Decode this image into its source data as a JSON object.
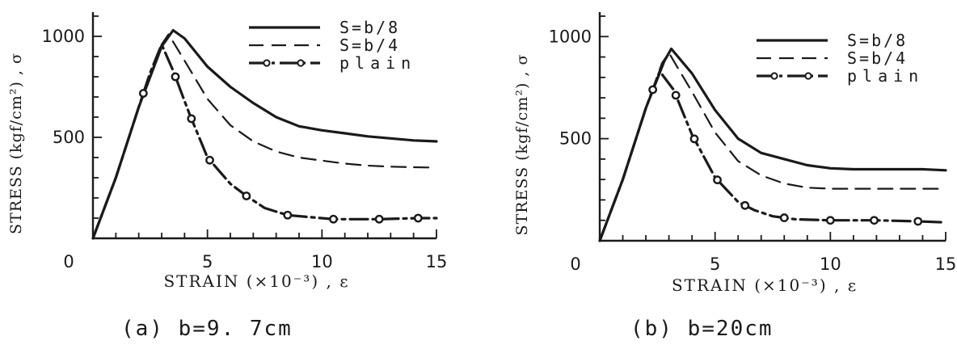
{
  "chart_data": [
    {
      "type": "line",
      "caption": "(a) b=9. 7cm",
      "xlabel": "STRAIN (×10⁻³) , ε",
      "ylabel": "STRESS (kgf/cm²) , σ",
      "xlim": [
        0,
        15
      ],
      "ylim": [
        0,
        1100
      ],
      "x_ticks": [
        "0",
        "5",
        "10",
        "15"
      ],
      "y_ticks": [
        "500",
        "1000"
      ],
      "legend_position": "top-right",
      "grid": false,
      "series": [
        {
          "name": "S=b/8",
          "style": "solid",
          "x": [
            0,
            1,
            2,
            3,
            3.5,
            4,
            5,
            6,
            7,
            8,
            9,
            10,
            11,
            12,
            13,
            14,
            15
          ],
          "y": [
            0,
            300,
            650,
            950,
            1030,
            990,
            850,
            750,
            670,
            600,
            555,
            535,
            520,
            505,
            495,
            485,
            480
          ]
        },
        {
          "name": "S=b/4",
          "style": "dashed",
          "x": [
            0,
            1,
            2,
            3,
            3.3,
            4,
            5,
            6,
            7,
            8,
            9,
            10,
            11,
            12,
            13,
            14,
            15
          ],
          "y": [
            0,
            300,
            650,
            960,
            1010,
            880,
            690,
            560,
            480,
            430,
            400,
            385,
            370,
            360,
            355,
            352,
            350
          ]
        },
        {
          "name": "plain",
          "style": "dash-dot-circle",
          "x": [
            0,
            1,
            2,
            2.5,
            3,
            3.5,
            4.2,
            5,
            6,
            6.7,
            7.5,
            8.5,
            10.5,
            12.5,
            14.2,
            15
          ],
          "y": [
            0,
            300,
            650,
            820,
            960,
            830,
            620,
            400,
            270,
            210,
            150,
            115,
            95,
            95,
            100,
            100
          ],
          "markers_x": [
            2.2,
            3.6,
            4.3,
            5.1,
            6.7,
            8.5,
            10.5,
            12.5,
            14.2
          ]
        }
      ]
    },
    {
      "type": "line",
      "caption": "(b) b=20cm",
      "xlabel": "STRAIN (×10⁻³) , ε",
      "ylabel": "STRESS (kgf/cm²) , σ",
      "xlim": [
        0,
        15
      ],
      "ylim": [
        0,
        1100
      ],
      "x_ticks": [
        "0",
        "5",
        "10",
        "15"
      ],
      "y_ticks": [
        "500",
        "1000"
      ],
      "legend_position": "top-right",
      "grid": false,
      "series": [
        {
          "name": "S=b/8",
          "style": "solid",
          "x": [
            0,
            1,
            2,
            2.8,
            3.1,
            4,
            5,
            6,
            7,
            8,
            9,
            10,
            11,
            12,
            13,
            14,
            15
          ],
          "y": [
            0,
            300,
            650,
            880,
            940,
            820,
            640,
            500,
            430,
            400,
            370,
            355,
            350,
            350,
            350,
            350,
            345
          ]
        },
        {
          "name": "S=b/4",
          "style": "dashed",
          "x": [
            0,
            1,
            2,
            2.7,
            3,
            4,
            5,
            6,
            7,
            8,
            9,
            10,
            11,
            12,
            13,
            14,
            15
          ],
          "y": [
            0,
            300,
            650,
            870,
            920,
            730,
            530,
            390,
            320,
            280,
            260,
            255,
            255,
            255,
            255,
            255,
            255
          ]
        },
        {
          "name": "plain",
          "style": "dash-dot-circle",
          "x": [
            0,
            1,
            2,
            2.6,
            3.2,
            4,
            5,
            6,
            6.7,
            7.5,
            8.5,
            10,
            12,
            13.8,
            15
          ],
          "y": [
            0,
            300,
            650,
            830,
            740,
            520,
            310,
            190,
            150,
            120,
            105,
            100,
            100,
            95,
            90
          ],
          "markers_x": [
            2.3,
            3.3,
            4.1,
            5.1,
            6.3,
            8.0,
            10,
            11.9,
            13.8
          ]
        }
      ]
    }
  ]
}
